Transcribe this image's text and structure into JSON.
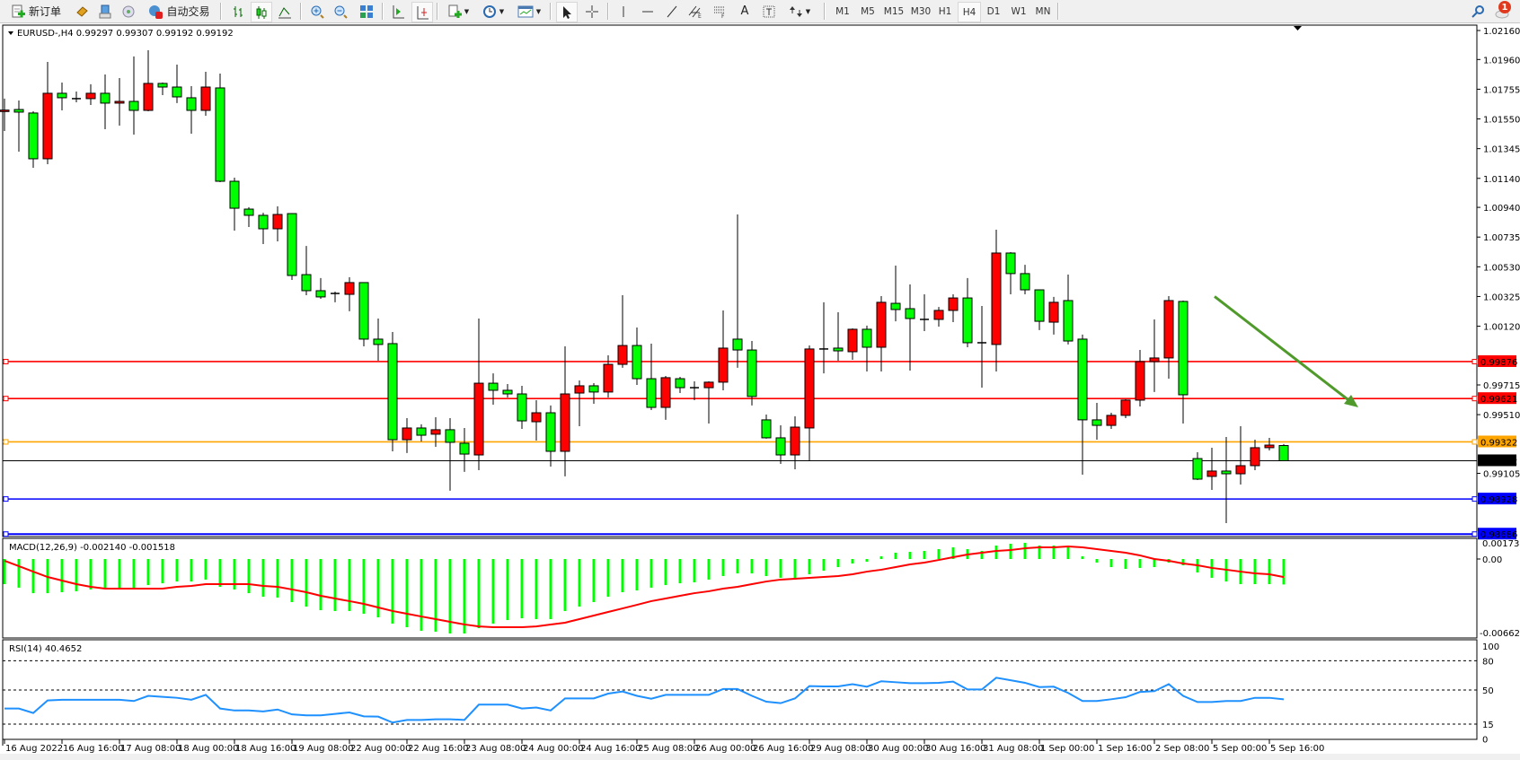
{
  "toolbar": {
    "new_order_label": "新订单",
    "auto_trading_label": "自动交易",
    "icons": [
      "new-order-icon",
      "market-watch-icon",
      "data-window-icon",
      "navigator-icon",
      "auto-trading-icon",
      "bar-chart-icon",
      "candlestick-icon",
      "line-chart-icon",
      "zoom-in-icon",
      "zoom-out-icon",
      "tile-windows-icon",
      "chart-autoscroll-icon",
      "chart-shift-icon",
      "indicators-icon",
      "periods-icon",
      "templates-icon",
      "cursor-icon",
      "crosshair-icon",
      "vertical-line-icon",
      "horizontal-line-icon",
      "trendline-icon",
      "equidistant-channel-icon",
      "fibonacci-icon",
      "text-icon",
      "text-label-icon",
      "arrows-icon",
      "search-icon",
      "notifications-icon"
    ],
    "timeframes": [
      "M1",
      "M5",
      "M15",
      "M30",
      "H1",
      "H4",
      "D1",
      "W1",
      "MN"
    ],
    "active_timeframe": "H4",
    "notification_count": "1"
  },
  "chart": {
    "header": "EURUSD-,H4  0.99297 0.99307 0.99192 0.99192",
    "price_ticks": [
      "1.02160",
      "1.01960",
      "1.01755",
      "1.01550",
      "1.01345",
      "1.01140",
      "1.00940",
      "1.00735",
      "1.00530",
      "1.00325",
      "1.00120",
      "0.99715",
      "0.99510",
      "0.99105"
    ],
    "price_range": [
      0.98686,
      1.0216
    ],
    "bull_color": "#ff0000",
    "bear_color": "#00ff00",
    "candles": [
      [
        1.01601,
        1.0169,
        1.01467,
        1.01611
      ],
      [
        1.01615,
        1.01677,
        1.01324,
        1.01597
      ],
      [
        1.01591,
        1.01603,
        1.01213,
        1.01275
      ],
      [
        1.01275,
        1.01943,
        1.01238,
        1.01727
      ],
      [
        1.01727,
        1.01801,
        1.01609,
        1.01696
      ],
      [
        1.0169,
        1.01739,
        1.01665,
        1.01687
      ],
      [
        1.0169,
        1.01789,
        1.01646,
        1.01727
      ],
      [
        1.01727,
        1.01857,
        1.01479,
        1.01659
      ],
      [
        1.01659,
        1.01832,
        1.01504,
        1.01671
      ],
      [
        1.01671,
        1.01981,
        1.01442,
        1.01609
      ],
      [
        1.01609,
        1.02024,
        1.01603,
        1.01795
      ],
      [
        1.01795,
        1.01801,
        1.01714,
        1.0177
      ],
      [
        1.0177,
        1.01925,
        1.01659,
        1.01702
      ],
      [
        1.01696,
        1.01776,
        1.01448,
        1.01609
      ],
      [
        1.01609,
        1.01875,
        1.01572,
        1.0177
      ],
      [
        1.01764,
        1.01863,
        1.01114,
        1.0112
      ],
      [
        1.0112,
        1.01145,
        1.0078,
        1.00934
      ],
      [
        1.00928,
        1.00941,
        1.00804,
        1.00885
      ],
      [
        1.00885,
        1.00903,
        1.00687,
        1.00792
      ],
      [
        1.00792,
        1.00947,
        1.00705,
        1.00891
      ],
      [
        1.00897,
        1.009,
        1.00439,
        1.0047
      ],
      [
        1.00476,
        1.00674,
        1.00334,
        1.00365
      ],
      [
        1.00365,
        1.00452,
        1.00309,
        1.00322
      ],
      [
        1.00346,
        1.00359,
        1.00285,
        1.00343
      ],
      [
        1.0034,
        1.00458,
        1.00223,
        1.00421
      ],
      [
        1.00421,
        1.00424,
        0.99981,
        1.00031
      ],
      [
        1.00031,
        1.00173,
        0.99882,
        0.99994
      ],
      [
        1.0,
        1.0008,
        0.99257,
        0.99337
      ],
      [
        0.99337,
        0.99486,
        0.99245,
        0.99418
      ],
      [
        0.99418,
        0.99443,
        0.99325,
        0.99368
      ],
      [
        0.99375,
        0.99492,
        0.99288,
        0.99406
      ],
      [
        0.99406,
        0.99486,
        0.98985,
        0.99319
      ],
      [
        0.99313,
        0.99418,
        0.99115,
        0.99238
      ],
      [
        0.99232,
        1.00173,
        0.99127,
        0.99727
      ],
      [
        0.99727,
        0.99795,
        0.99579,
        0.99678
      ],
      [
        0.99678,
        0.99721,
        0.99628,
        0.99653
      ],
      [
        0.99653,
        0.99709,
        0.99412,
        0.99467
      ],
      [
        0.99461,
        0.9961,
        0.99331,
        0.99523
      ],
      [
        0.99523,
        0.99573,
        0.99152,
        0.99257
      ],
      [
        0.99257,
        0.99981,
        0.99084,
        0.99653
      ],
      [
        0.99659,
        0.99746,
        0.9943,
        0.99709
      ],
      [
        0.99709,
        0.99727,
        0.99585,
        0.99666
      ],
      [
        0.99666,
        0.99919,
        0.99628,
        0.99857
      ],
      [
        0.99857,
        1.00334,
        0.99833,
        0.99987
      ],
      [
        0.99987,
        1.00111,
        0.99715,
        0.99758
      ],
      [
        0.99758,
        1.0,
        0.99542,
        0.9956
      ],
      [
        0.9956,
        0.99777,
        0.99474,
        0.99765
      ],
      [
        0.99758,
        0.99771,
        0.99659,
        0.99696
      ],
      [
        0.99696,
        0.9974,
        0.9961,
        0.99693
      ],
      [
        0.99696,
        0.9974,
        0.99449,
        0.99734
      ],
      [
        0.99734,
        1.00229,
        0.99678,
        0.99969
      ],
      [
        1.00031,
        1.00891,
        0.99833,
        0.99956
      ],
      [
        0.99956,
        1.00018,
        0.99573,
        0.99635
      ],
      [
        0.99474,
        0.99511,
        0.99344,
        0.9935
      ],
      [
        0.9935,
        0.99436,
        0.9917,
        0.99232
      ],
      [
        0.99232,
        0.99498,
        0.99133,
        0.99424
      ],
      [
        0.99418,
        0.99987,
        0.99189,
        0.99963
      ],
      [
        0.99963,
        1.00285,
        0.99795,
        0.9996
      ],
      [
        0.99969,
        1.00216,
        0.99882,
        0.9995
      ],
      [
        0.99944,
        1.00105,
        0.99888,
        1.00099
      ],
      [
        1.00099,
        1.00124,
        0.99808,
        0.99975
      ],
      [
        0.99975,
        1.00328,
        0.99808,
        1.00285
      ],
      [
        1.00278,
        1.00538,
        1.00154,
        1.00235
      ],
      [
        1.00241,
        1.00408,
        0.99814,
        1.00173
      ],
      [
        1.00167,
        1.0034,
        1.00086,
        1.00164
      ],
      [
        1.00167,
        1.00253,
        1.00117,
        1.00229
      ],
      [
        1.00229,
        1.0034,
        1.00148,
        1.00315
      ],
      [
        1.00315,
        1.00452,
        0.99975,
        1.00006
      ],
      [
        1.00006,
        1.0026,
        0.99696,
        1.00003
      ],
      [
        0.99994,
        1.00786,
        0.99808,
        1.00625
      ],
      [
        1.00625,
        1.00631,
        1.0034,
        1.00483
      ],
      [
        1.00483,
        1.00544,
        1.0034,
        1.00371
      ],
      [
        1.00371,
        1.00374,
        1.00093,
        1.00154
      ],
      [
        1.00148,
        1.00322,
        1.00062,
        1.00285
      ],
      [
        1.00297,
        1.00476,
        0.99994,
        1.00018
      ],
      [
        1.00031,
        1.00062,
        0.99096,
        0.99474
      ],
      [
        0.99474,
        0.99591,
        0.99337,
        0.99436
      ],
      [
        0.99436,
        0.99523,
        0.99412,
        0.99505
      ],
      [
        0.99505,
        0.99616,
        0.99486,
        0.9961
      ],
      [
        0.9961,
        0.99956,
        0.99566,
        0.99876
      ],
      [
        0.99876,
        1.00167,
        0.99666,
        0.99901
      ],
      [
        0.99901,
        1.00328,
        0.99758,
        1.00297
      ],
      [
        1.00291,
        1.00297,
        0.99449,
        0.99647
      ],
      [
        0.99207,
        0.99251,
        0.99059,
        0.99065
      ],
      [
        0.99084,
        0.99282,
        0.98991,
        0.99121
      ],
      [
        0.99121,
        0.99356,
        0.98762,
        0.99102
      ],
      [
        0.99102,
        0.9943,
        0.99028,
        0.99158
      ],
      [
        0.99158,
        0.99337,
        0.99127,
        0.99282
      ],
      [
        0.99282,
        0.9935,
        0.99263,
        0.993
      ],
      [
        0.99297,
        0.99307,
        0.99192,
        0.99192
      ]
    ],
    "hlines": [
      {
        "price": 0.99876,
        "label": "0.99876",
        "color": "#ff0000"
      },
      {
        "price": 0.99621,
        "label": "0.99621",
        "color": "#ff0000"
      },
      {
        "price": 0.99322,
        "label": "0.99322",
        "color": "#ffa500"
      },
      {
        "price": 0.99192,
        "label": "0.99192",
        "color": "#000000"
      },
      {
        "price": 0.98928,
        "label": "0.98928",
        "color": "#0000ff"
      },
      {
        "price": 0.98686,
        "label": "0.98686",
        "color": "#0000ff"
      }
    ],
    "arrow": {
      "color": "#4f9a2a",
      "from_price": 1.00325,
      "to_price": 0.9956
    },
    "x_labels": [
      "16 Aug 2022",
      "16 Aug 16:00",
      "17 Aug 08:00",
      "18 Aug 00:00",
      "18 Aug 16:00",
      "19 Aug 08:00",
      "22 Aug 00:00",
      "22 Aug 16:00",
      "23 Aug 08:00",
      "24 Aug 00:00",
      "24 Aug 16:00",
      "25 Aug 08:00",
      "26 Aug 00:00",
      "26 Aug 16:00",
      "29 Aug 08:00",
      "30 Aug 00:00",
      "30 Aug 16:00",
      "31 Aug 08:00",
      "1 Sep 00:00",
      "1 Sep 16:00",
      "2 Sep 08:00",
      "5 Sep 00:00",
      "5 Sep 16:00"
    ]
  },
  "macd": {
    "header": "MACD(12,26,9) -0.002140 -0.001518",
    "ticks": [
      "0.001737",
      "0.00",
      "-0.006628"
    ],
    "range": [
      -0.006628,
      0.001737
    ],
    "hist_color": "#00ff00",
    "signal_color": "#ff0000",
    "histogram": [
      -0.00211,
      -0.00241,
      -0.00287,
      -0.00287,
      -0.00279,
      -0.00271,
      -0.00256,
      -0.00249,
      -0.00249,
      -0.00249,
      -0.00219,
      -0.00204,
      -0.00189,
      -0.00189,
      -0.00173,
      -0.00234,
      -0.00256,
      -0.00287,
      -0.00317,
      -0.00324,
      -0.00362,
      -0.004,
      -0.0043,
      -0.00437,
      -0.00437,
      -0.0046,
      -0.0049,
      -0.00543,
      -0.00573,
      -0.00603,
      -0.00611,
      -0.00626,
      -0.00626,
      -0.00581,
      -0.00543,
      -0.00513,
      -0.00498,
      -0.00505,
      -0.00505,
      -0.00437,
      -0.004,
      -0.00362,
      -0.00317,
      -0.00279,
      -0.00264,
      -0.00241,
      -0.00219,
      -0.00204,
      -0.00196,
      -0.00173,
      -0.00143,
      -0.00121,
      -0.00121,
      -0.00143,
      -0.00158,
      -0.00173,
      -0.00128,
      -0.00098,
      -0.00068,
      -0.00038,
      -0.00023,
      0.00023,
      0.00053,
      0.0006,
      0.00068,
      0.00083,
      0.00098,
      0.00083,
      0.00068,
      0.00113,
      0.00128,
      0.00136,
      0.00113,
      0.00113,
      0.00098,
      0.00023,
      -0.0003,
      -0.00068,
      -0.00083,
      -0.00075,
      -0.00068,
      -0.0003,
      -0.00053,
      -0.00113,
      -0.00158,
      -0.00189,
      -0.00211,
      -0.00211,
      -0.00211,
      -0.00214
    ],
    "signal": [
      -0.00015,
      -0.0006,
      -0.00106,
      -0.00151,
      -0.00181,
      -0.00211,
      -0.00234,
      -0.00249,
      -0.00249,
      -0.00249,
      -0.00249,
      -0.00249,
      -0.00234,
      -0.00226,
      -0.00211,
      -0.00211,
      -0.00211,
      -0.00211,
      -0.00226,
      -0.00234,
      -0.00256,
      -0.00279,
      -0.00309,
      -0.00332,
      -0.00354,
      -0.00377,
      -0.00407,
      -0.00437,
      -0.0046,
      -0.00483,
      -0.00505,
      -0.00528,
      -0.0055,
      -0.00566,
      -0.00573,
      -0.00573,
      -0.00573,
      -0.00566,
      -0.0055,
      -0.00535,
      -0.00505,
      -0.00475,
      -0.00445,
      -0.00415,
      -0.00385,
      -0.00354,
      -0.00332,
      -0.00309,
      -0.00287,
      -0.00271,
      -0.00249,
      -0.00234,
      -0.00211,
      -0.00189,
      -0.00173,
      -0.00166,
      -0.00158,
      -0.00151,
      -0.00143,
      -0.00128,
      -0.00106,
      -0.0009,
      -0.00068,
      -0.00045,
      -0.0003,
      -8e-05,
      0.00015,
      0.00038,
      0.00053,
      0.00068,
      0.00075,
      0.0009,
      0.00098,
      0.00098,
      0.00106,
      0.00098,
      0.00083,
      0.00068,
      0.00053,
      0.0003,
      0,
      -0.00015,
      -0.00038,
      -0.00053,
      -0.00075,
      -0.0009,
      -0.00106,
      -0.00121,
      -0.00128,
      -0.001518
    ]
  },
  "rsi": {
    "header": "RSI(14) 40.4652",
    "ticks": [
      "100",
      "80",
      "50",
      "15",
      "0"
    ],
    "levels": [
      80,
      50,
      15
    ],
    "color": "#1e90ff",
    "values": [
      31,
      31,
      26.4,
      39.3,
      40,
      40,
      40,
      40,
      40,
      38.7,
      44,
      43,
      42,
      40,
      45,
      31,
      29,
      29,
      28,
      30,
      25,
      24,
      24,
      25.5,
      27,
      23,
      22.7,
      16.6,
      19.3,
      19.3,
      20,
      20,
      19.3,
      35,
      35,
      35,
      31,
      32,
      29,
      41.4,
      41.4,
      41.4,
      46.3,
      48.5,
      44,
      41,
      45,
      45,
      45,
      45,
      51,
      51,
      44,
      38,
      36.5,
      41.4,
      54,
      53.7,
      53.7,
      56,
      53.4,
      59,
      58,
      57,
      57,
      57.4,
      58.6,
      50.6,
      50.6,
      62.6,
      60,
      57.4,
      53,
      53.4,
      47,
      38.7,
      38.7,
      40.5,
      42.6,
      48,
      48.8,
      56,
      44,
      37.7,
      37.7,
      38.7,
      38.7,
      42,
      42,
      40.4652
    ]
  }
}
